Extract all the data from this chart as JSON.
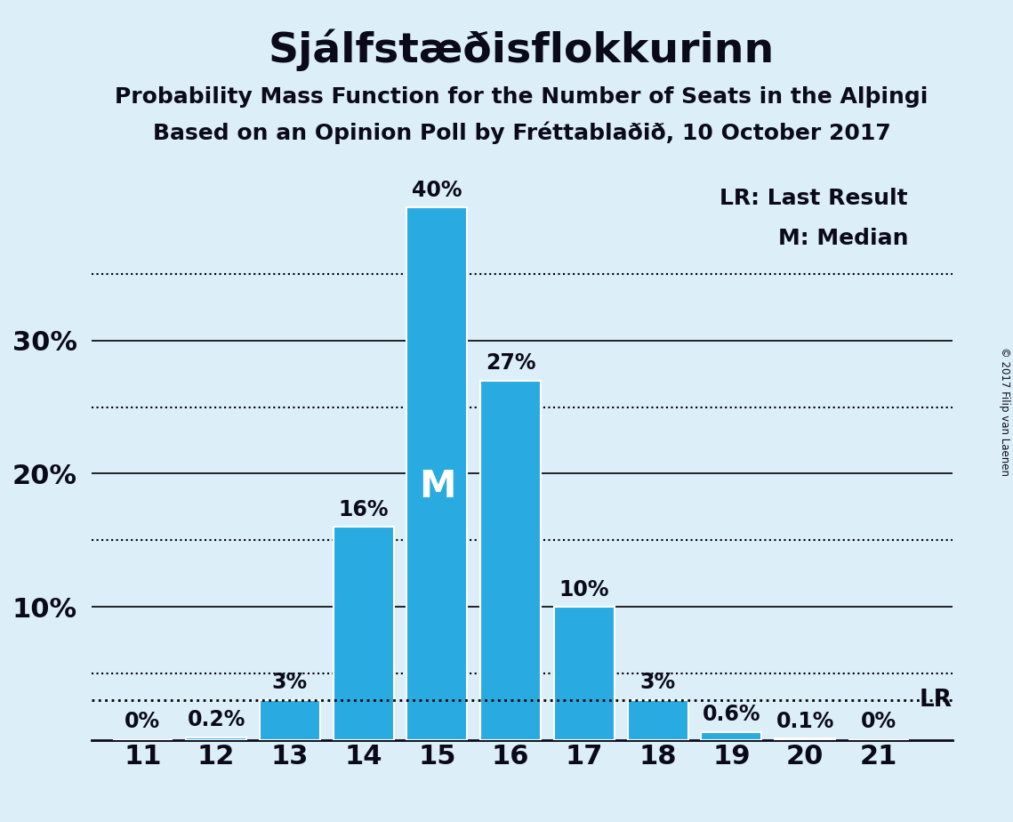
{
  "title": "Sjálfstæðisflokkurinn",
  "subtitle1": "Probability Mass Function for the Number of Seats in the Alþingi",
  "subtitle2": "Based on an Opinion Poll by Fréttablaðið, 10 October 2017",
  "copyright": "© 2017 Filip van Laenen",
  "categories": [
    11,
    12,
    13,
    14,
    15,
    16,
    17,
    18,
    19,
    20,
    21
  ],
  "values": [
    0.0,
    0.2,
    3.0,
    16.0,
    40.0,
    27.0,
    10.0,
    3.0,
    0.6,
    0.1,
    0.0
  ],
  "label_texts": [
    "0%",
    "0.2%",
    "3%",
    "16%",
    "40%",
    "27%",
    "10%",
    "3%",
    "0.6%",
    "0.1%",
    "0%"
  ],
  "bar_color": "#29ABE2",
  "background_color": "#DCEEF8",
  "text_color": "#0a0a1a",
  "median_seat": 15,
  "median_label": "M",
  "lr_value": 3.0,
  "lr_label": "LR",
  "solid_gridlines": [
    10,
    20,
    30
  ],
  "dotted_gridlines": [
    5,
    15,
    25,
    35
  ],
  "ylim": [
    0,
    42
  ],
  "xlim_left": 10.3,
  "xlim_right": 22.0,
  "legend_text1": "LR: Last Result",
  "legend_text2": "M: Median",
  "bar_width": 0.82
}
